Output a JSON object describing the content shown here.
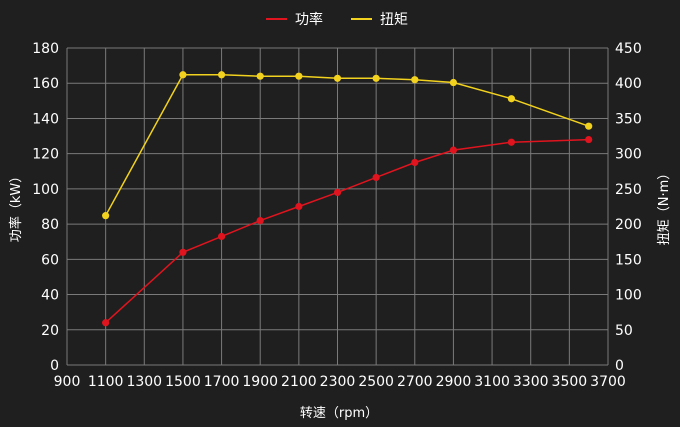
{
  "chart_data": {
    "type": "line",
    "title": "",
    "xlabel": "转速（rpm）",
    "ylabel_left": "功率（kW）",
    "ylabel_right": "扭矩（N·m）",
    "x_ticks": [
      900,
      1100,
      1300,
      1500,
      1700,
      1900,
      2100,
      2300,
      2500,
      2700,
      2900,
      3100,
      3300,
      3500,
      3700
    ],
    "y_left_ticks": [
      0,
      20,
      40,
      60,
      80,
      100,
      120,
      140,
      160,
      180
    ],
    "y_right_ticks": [
      0,
      50,
      100,
      150,
      200,
      250,
      300,
      350,
      400,
      450
    ],
    "xlim": [
      900,
      3700
    ],
    "ylim_left": [
      0,
      180
    ],
    "ylim_right": [
      0,
      450
    ],
    "grid": true,
    "legend_position": "top-center",
    "series": [
      {
        "name": "功率",
        "axis": "left",
        "color": "#e0141e",
        "x": [
          1100,
          1500,
          1700,
          1900,
          2100,
          2300,
          2500,
          2700,
          2900,
          3200,
          3600
        ],
        "values": [
          24,
          64,
          73,
          82,
          90,
          98,
          106.5,
          115,
          122,
          126.5,
          128
        ]
      },
      {
        "name": "扭矩",
        "axis": "right",
        "color": "#f2d21f",
        "x": [
          1100,
          1500,
          1700,
          1900,
          2100,
          2300,
          2500,
          2700,
          2900,
          3200,
          3600
        ],
        "values": [
          212,
          412,
          412,
          410,
          410,
          407,
          407,
          405,
          401,
          378,
          339
        ]
      }
    ]
  }
}
